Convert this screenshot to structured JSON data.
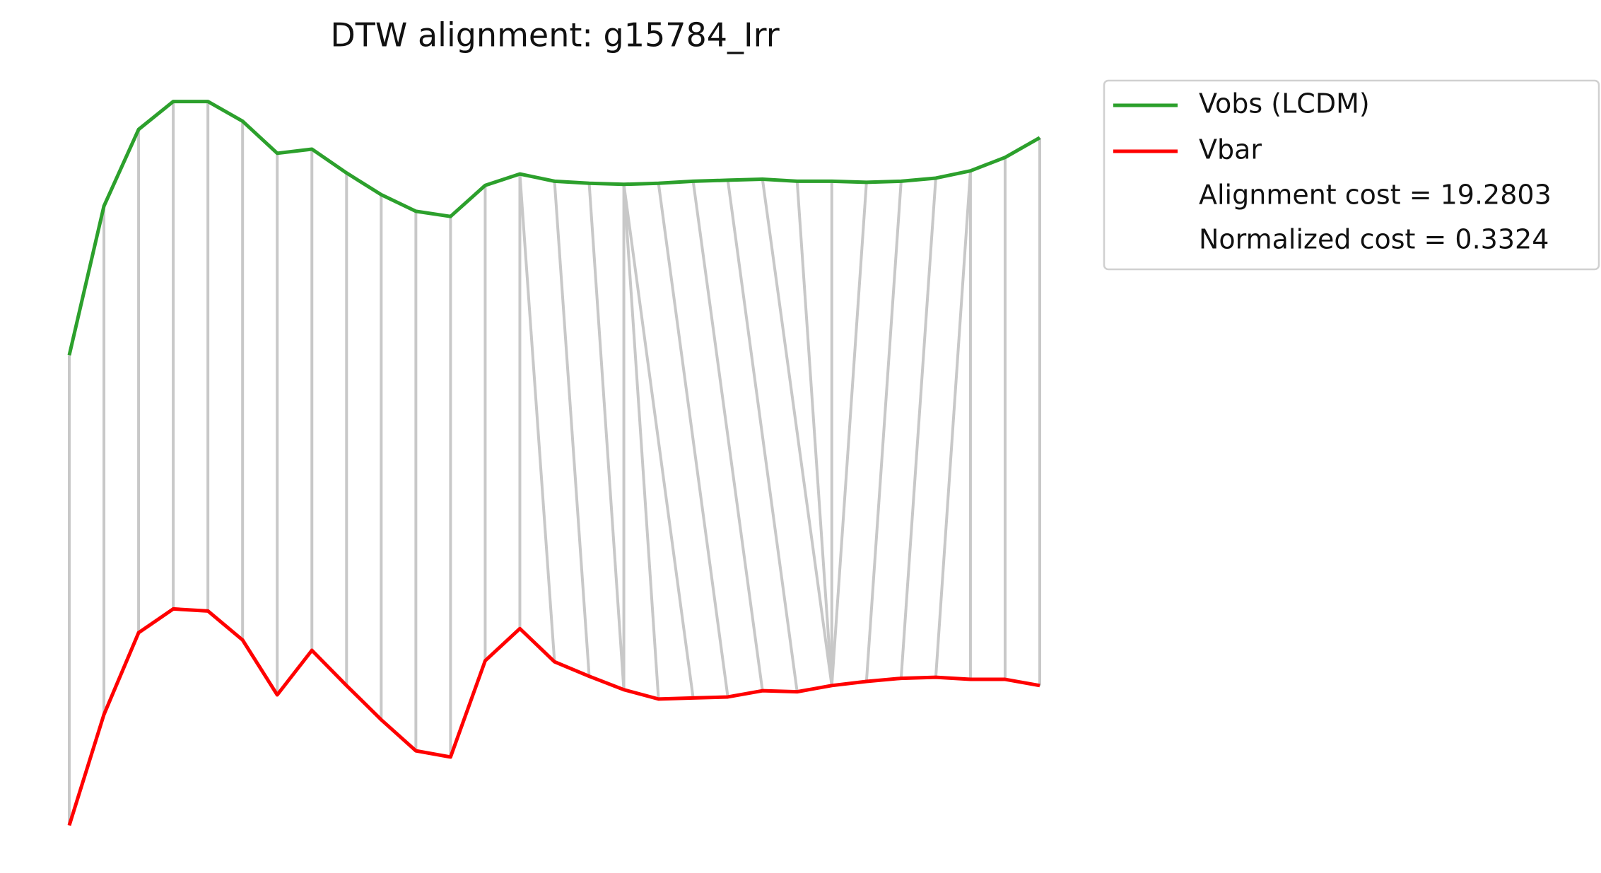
{
  "chart_data": {
    "type": "line",
    "title": "DTW alignment: g15784_Irr",
    "x": [
      0,
      1,
      2,
      3,
      4,
      5,
      6,
      7,
      8,
      9,
      10,
      11,
      12,
      13,
      14,
      15,
      16,
      17,
      18,
      19,
      20,
      21,
      22,
      23,
      24,
      25,
      26,
      27,
      28
    ],
    "xlim": [
      0,
      28
    ],
    "ylim": [
      0,
      800
    ],
    "series": [
      {
        "name": "Vobs (LCDM)",
        "color": "#2ca02c",
        "values": [
          457,
          601,
          675,
          702,
          702,
          683,
          652,
          656,
          633,
          612,
          596,
          591,
          621,
          632,
          625,
          623,
          622,
          623,
          625,
          626,
          627,
          625,
          625,
          624,
          625,
          628,
          635,
          648,
          667
        ]
      },
      {
        "name": "Vbar",
        "color": "#ff0000",
        "values": [
          3,
          110,
          189,
          212,
          210,
          182,
          129,
          172,
          138,
          105,
          75,
          69,
          162,
          193,
          161,
          147,
          134,
          125,
          126,
          127,
          133,
          132,
          138,
          142,
          145,
          146,
          144,
          144,
          138
        ]
      }
    ],
    "alignment": [
      [
        0,
        0
      ],
      [
        1,
        1
      ],
      [
        2,
        2
      ],
      [
        3,
        3
      ],
      [
        4,
        4
      ],
      [
        5,
        5
      ],
      [
        6,
        6
      ],
      [
        7,
        7
      ],
      [
        8,
        8
      ],
      [
        9,
        9
      ],
      [
        10,
        10
      ],
      [
        11,
        11
      ],
      [
        12,
        12
      ],
      [
        13,
        13
      ],
      [
        13,
        14
      ],
      [
        14,
        15
      ],
      [
        15,
        16
      ],
      [
        16,
        16
      ],
      [
        16,
        17
      ],
      [
        16,
        18
      ],
      [
        17,
        19
      ],
      [
        18,
        20
      ],
      [
        19,
        21
      ],
      [
        20,
        22
      ],
      [
        21,
        22
      ],
      [
        22,
        22
      ],
      [
        23,
        22
      ],
      [
        24,
        23
      ],
      [
        25,
        24
      ],
      [
        26,
        25
      ],
      [
        26,
        26
      ],
      [
        27,
        27
      ],
      [
        28,
        28
      ]
    ],
    "alignment_color": "#c8c8c8",
    "annotations": [
      "Alignment cost = 19.2803",
      "Normalized cost = 0.3324"
    ]
  }
}
